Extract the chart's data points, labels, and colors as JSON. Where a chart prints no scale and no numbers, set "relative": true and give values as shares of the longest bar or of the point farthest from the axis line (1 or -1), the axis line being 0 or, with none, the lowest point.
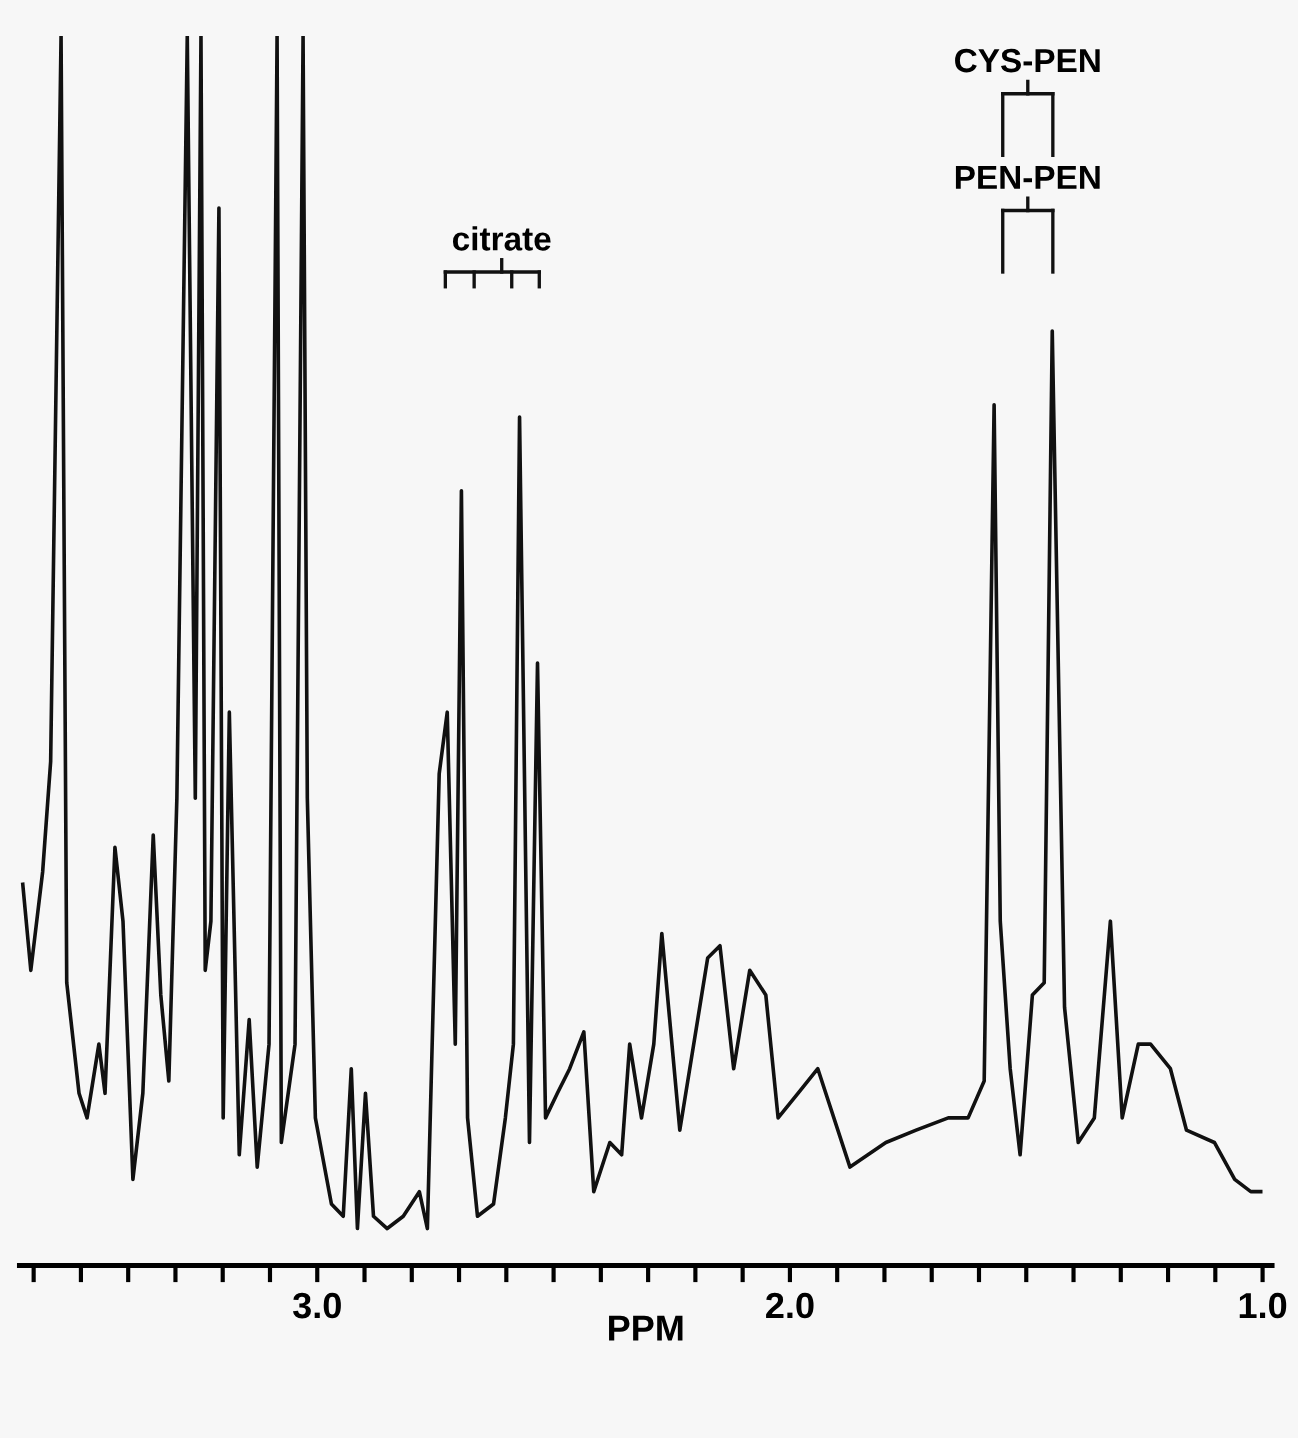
{
  "chart_data": {
    "type": "line",
    "relative": true,
    "xlabel": "PPM",
    "grid": false,
    "legend": false,
    "marker": "none",
    "line_style": "solid",
    "xlim": [
      3.63,
      0.98
    ],
    "xticks": [
      {
        "value": 3.6,
        "label": null
      },
      {
        "value": 3.5,
        "label": null
      },
      {
        "value": 3.4,
        "label": null
      },
      {
        "value": 3.3,
        "label": null
      },
      {
        "value": 3.2,
        "label": null
      },
      {
        "value": 3.1,
        "label": null
      },
      {
        "value": 3.0,
        "label": "3.0"
      },
      {
        "value": 2.9,
        "label": null
      },
      {
        "value": 2.8,
        "label": null
      },
      {
        "value": 2.7,
        "label": null
      },
      {
        "value": 2.6,
        "label": null
      },
      {
        "value": 2.5,
        "label": null
      },
      {
        "value": 2.4,
        "label": null
      },
      {
        "value": 2.3,
        "label": null
      },
      {
        "value": 2.2,
        "label": null
      },
      {
        "value": 2.1,
        "label": null
      },
      {
        "value": 2.0,
        "label": "2.0"
      },
      {
        "value": 1.9,
        "label": null
      },
      {
        "value": 1.8,
        "label": null
      },
      {
        "value": 1.7,
        "label": null
      },
      {
        "value": 1.6,
        "label": null
      },
      {
        "value": 1.5,
        "label": null
      },
      {
        "value": 1.4,
        "label": null
      },
      {
        "value": 1.3,
        "label": null
      },
      {
        "value": 1.2,
        "label": null
      },
      {
        "value": 1.1,
        "label": null
      },
      {
        "value": 1.0,
        "label": "1.0"
      }
    ],
    "annotations": [
      "citrate",
      "CYS-PEN",
      "PEN-PEN"
    ],
    "series": [
      {
        "color": "#111111",
        "x": [
          3.623,
          3.606,
          3.581,
          3.564,
          3.542,
          3.53,
          3.504,
          3.487,
          3.462,
          3.449,
          3.428,
          3.411,
          3.39,
          3.369,
          3.347,
          3.331,
          3.314,
          3.297,
          3.275,
          3.258,
          3.246,
          3.237,
          3.225,
          3.208,
          3.199,
          3.186,
          3.165,
          3.144,
          3.127,
          3.102,
          3.085,
          3.076,
          3.047,
          3.03,
          3.021,
          3.004,
          2.97,
          2.945,
          2.928,
          2.915,
          2.898,
          2.881,
          2.852,
          2.818,
          2.784,
          2.767,
          2.742,
          2.725,
          2.708,
          2.695,
          2.682,
          2.661,
          2.627,
          2.602,
          2.585,
          2.572,
          2.551,
          2.534,
          2.517,
          2.492,
          2.466,
          2.436,
          2.415,
          2.381,
          2.356,
          2.339,
          2.314,
          2.288,
          2.271,
          2.233,
          2.174,
          2.148,
          2.119,
          2.085,
          2.051,
          2.025,
          1.983,
          1.941,
          1.873,
          1.797,
          1.733,
          1.665,
          1.623,
          1.589,
          1.568,
          1.555,
          1.534,
          1.513,
          1.487,
          1.462,
          1.445,
          1.419,
          1.39,
          1.356,
          1.322,
          1.297,
          1.263,
          1.237,
          1.195,
          1.161,
          1.102,
          1.059,
          1.025,
          1.004
        ],
        "values": [
          0.31,
          0.24,
          0.32,
          0.41,
          1,
          0.23,
          0.14,
          0.12,
          0.18,
          0.14,
          0.34,
          0.28,
          0.07,
          0.14,
          0.35,
          0.22,
          0.15,
          0.38,
          1,
          0.38,
          1,
          0.24,
          0.28,
          0.86,
          0.12,
          0.45,
          0.09,
          0.2,
          0.08,
          0.18,
          1,
          0.1,
          0.18,
          1,
          0.38,
          0.12,
          0.05,
          0.04,
          0.16,
          0.03,
          0.14,
          0.04,
          0.03,
          0.04,
          0.06,
          0.03,
          0.4,
          0.45,
          0.18,
          0.63,
          0.12,
          0.04,
          0.05,
          0.12,
          0.18,
          0.69,
          0.1,
          0.49,
          0.12,
          0.14,
          0.16,
          0.19,
          0.06,
          0.1,
          0.09,
          0.18,
          0.12,
          0.18,
          0.27,
          0.11,
          0.25,
          0.26,
          0.16,
          0.24,
          0.22,
          0.12,
          0.14,
          0.16,
          0.08,
          0.1,
          0.11,
          0.12,
          0.12,
          0.15,
          0.7,
          0.28,
          0.16,
          0.09,
          0.22,
          0.23,
          0.76,
          0.21,
          0.1,
          0.12,
          0.28,
          0.12,
          0.18,
          0.18,
          0.16,
          0.11,
          0.1,
          0.07,
          0.06,
          0.06
        ]
      }
    ]
  }
}
